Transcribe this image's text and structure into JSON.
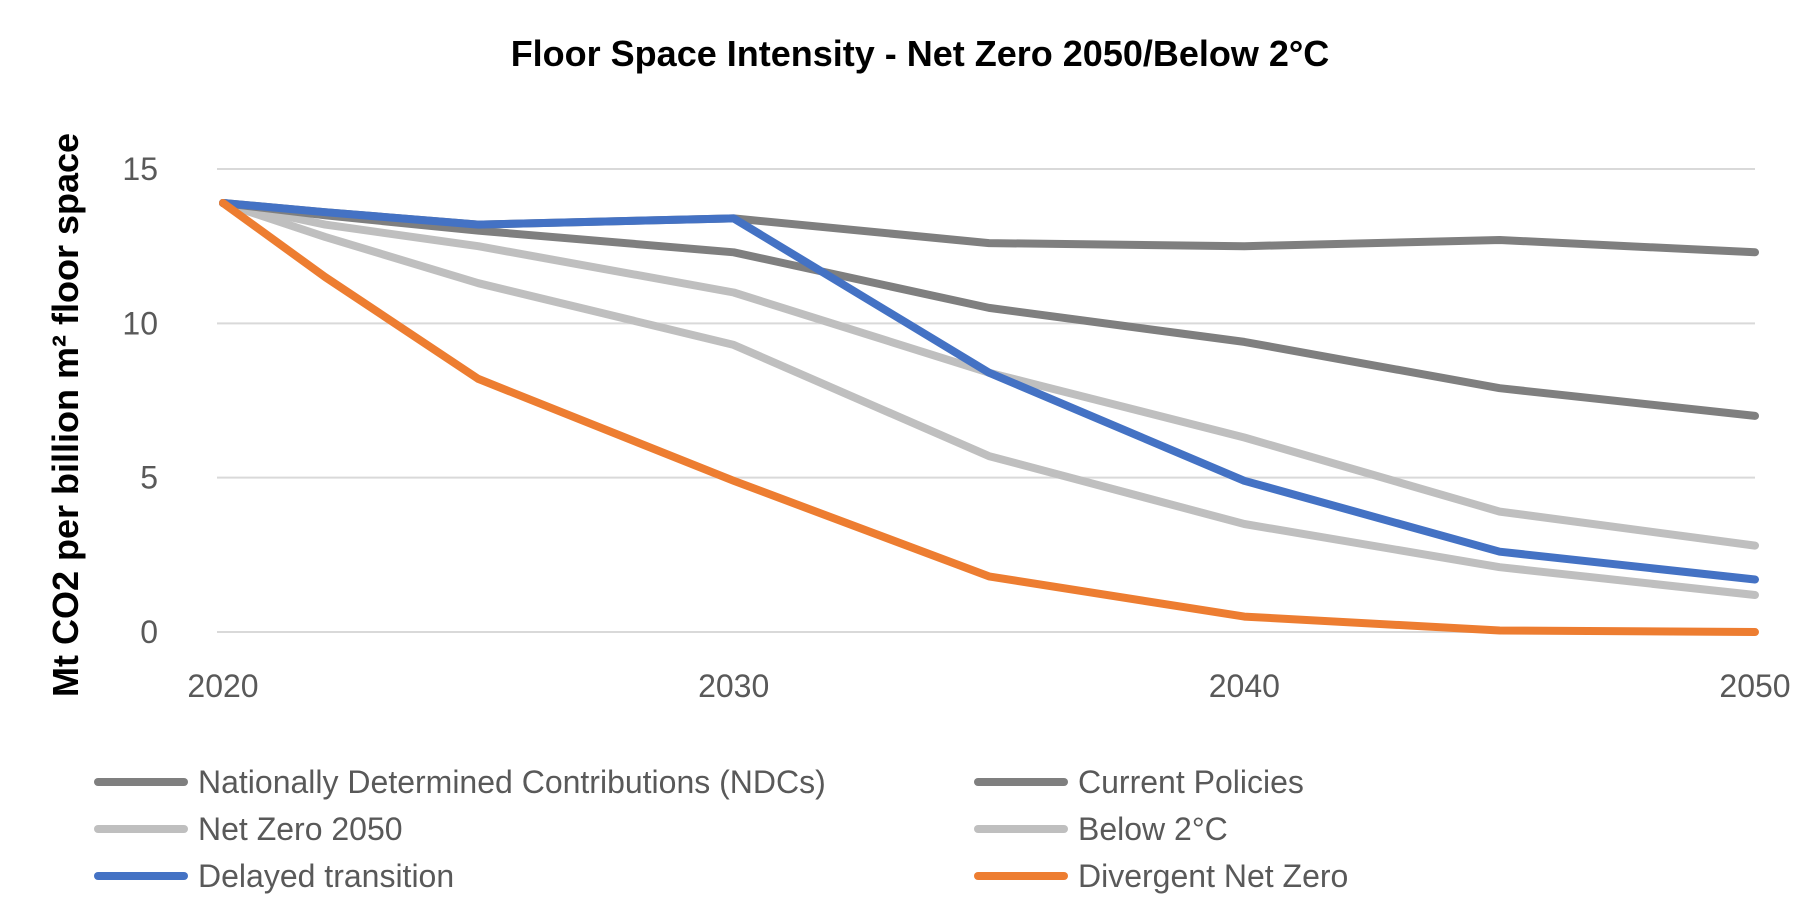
{
  "chart_data": {
    "type": "line",
    "title": "Floor Space Intensity - Net Zero 2050/Below 2°C",
    "xlabel": "",
    "ylabel": "Mt CO2 per billion m² floor space",
    "x": [
      2020,
      2022,
      2025,
      2030,
      2035,
      2040,
      2045,
      2050
    ],
    "xticks": [
      "2020",
      "2030",
      "2040",
      "2050"
    ],
    "xlim": [
      2020,
      2050
    ],
    "yticks": [
      "0",
      "5",
      "10",
      "15"
    ],
    "ylim": [
      0,
      15
    ],
    "grid": true,
    "legend_position": "bottom",
    "series": [
      {
        "name": "Nationally Determined Contributions (NDCs)",
        "color": "#7f7f7f",
        "values": [
          13.9,
          13.5,
          13.0,
          12.3,
          10.5,
          9.4,
          7.9,
          7.0
        ]
      },
      {
        "name": "Current Policies",
        "color": "#7f7f7f",
        "values": [
          13.9,
          13.6,
          13.2,
          13.4,
          12.6,
          12.5,
          12.7,
          12.3
        ]
      },
      {
        "name": "Net Zero 2050",
        "color": "#bfbfbf",
        "values": [
          13.9,
          12.8,
          11.3,
          9.3,
          5.7,
          3.5,
          2.1,
          1.2
        ]
      },
      {
        "name": "Below 2°C",
        "color": "#bfbfbf",
        "values": [
          13.9,
          13.2,
          12.5,
          11.0,
          8.4,
          6.3,
          3.9,
          2.8
        ]
      },
      {
        "name": "Delayed transition",
        "color": "#4472c4",
        "values": [
          13.9,
          13.6,
          13.2,
          13.4,
          8.4,
          4.9,
          2.6,
          1.7
        ]
      },
      {
        "name": "Divergent Net Zero",
        "color": "#ed7d31",
        "values": [
          13.9,
          11.5,
          8.2,
          4.9,
          1.8,
          0.5,
          0.05,
          0.0
        ]
      }
    ]
  }
}
